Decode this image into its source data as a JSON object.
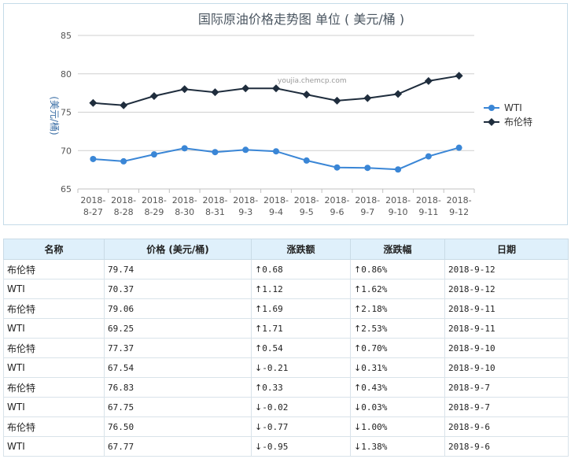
{
  "chart_data": {
    "type": "line",
    "title": "国际原油价格走势图 单位 ( 美元/桶 )",
    "ylabel": "(美元/桶)",
    "watermark": "youjia.chemcp.com",
    "categories": [
      "2018-8-27",
      "2018-8-28",
      "2018-8-29",
      "2018-8-30",
      "2018-8-31",
      "2018-9-3",
      "2018-9-4",
      "2018-9-5",
      "2018-9-6",
      "2018-9-7",
      "2018-9-10",
      "2018-9-11",
      "2018-9-12"
    ],
    "ylim": [
      65,
      85
    ],
    "yticks": [
      65,
      70,
      75,
      80,
      85
    ],
    "grid": true,
    "legend_position": "right",
    "series": [
      {
        "name": "WTI",
        "color": "#3a86d6",
        "values": [
          68.9,
          68.6,
          69.5,
          70.3,
          69.8,
          70.1,
          69.9,
          68.7,
          67.8,
          67.75,
          67.54,
          69.25,
          70.37
        ]
      },
      {
        "name": "布伦特",
        "color": "#1f2d3d",
        "values": [
          76.2,
          75.9,
          77.1,
          78.0,
          77.6,
          78.1,
          78.1,
          77.3,
          76.5,
          76.83,
          77.37,
          79.06,
          79.74
        ]
      }
    ]
  },
  "table": {
    "headers": [
      "名称",
      "价格 (美元/桶)",
      "涨跌额",
      "涨跌幅",
      "日期"
    ],
    "rows": [
      {
        "name": "布伦特",
        "price": "79.74",
        "change": "0.68",
        "pct": "0.86%",
        "date": "2018-9-12",
        "dir": "up"
      },
      {
        "name": "WTI",
        "price": "70.37",
        "change": "1.12",
        "pct": "1.62%",
        "date": "2018-9-12",
        "dir": "up"
      },
      {
        "name": "布伦特",
        "price": "79.06",
        "change": "1.69",
        "pct": "2.18%",
        "date": "2018-9-11",
        "dir": "up"
      },
      {
        "name": "WTI",
        "price": "69.25",
        "change": "1.71",
        "pct": "2.53%",
        "date": "2018-9-11",
        "dir": "up"
      },
      {
        "name": "布伦特",
        "price": "77.37",
        "change": "0.54",
        "pct": "0.70%",
        "date": "2018-9-10",
        "dir": "up"
      },
      {
        "name": "WTI",
        "price": "67.54",
        "change": "-0.21",
        "pct": "0.31%",
        "date": "2018-9-10",
        "dir": "down"
      },
      {
        "name": "布伦特",
        "price": "76.83",
        "change": "0.33",
        "pct": "0.43%",
        "date": "2018-9-7",
        "dir": "up"
      },
      {
        "name": "WTI",
        "price": "67.75",
        "change": "-0.02",
        "pct": "0.03%",
        "date": "2018-9-7",
        "dir": "down"
      },
      {
        "name": "布伦特",
        "price": "76.50",
        "change": "-0.77",
        "pct": "1.00%",
        "date": "2018-9-6",
        "dir": "down"
      },
      {
        "name": "WTI",
        "price": "67.77",
        "change": "-0.95",
        "pct": "1.38%",
        "date": "2018-9-6",
        "dir": "down"
      }
    ],
    "up_color": "#d40000",
    "down_color": "#0b8a0b"
  }
}
